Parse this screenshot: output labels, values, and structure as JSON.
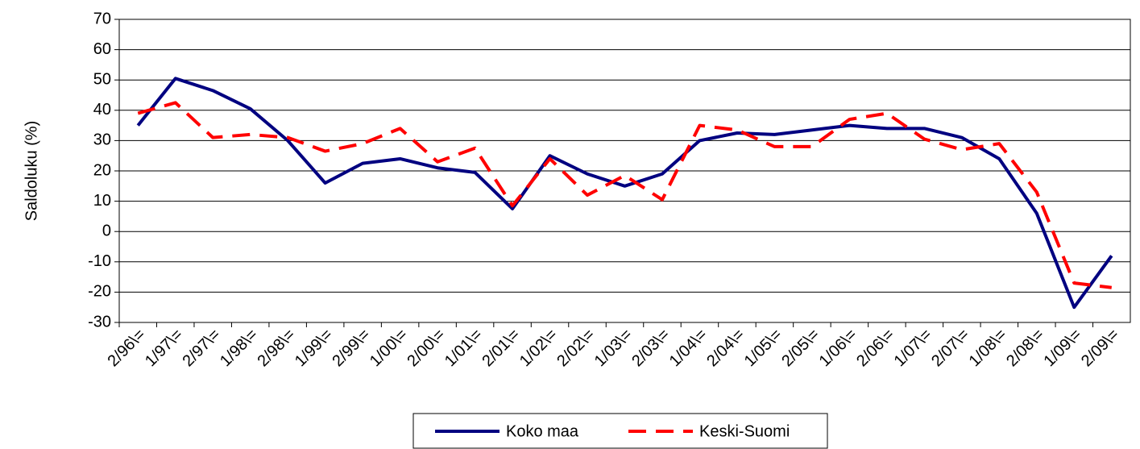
{
  "chart_data": {
    "type": "line",
    "y_label": "Saldoluku (%)",
    "categories": [
      "2/96\\=",
      "1/97\\=",
      "2/97\\=",
      "1/98\\=",
      "2/98\\=",
      "1/99\\=",
      "2/99\\=",
      "1/00\\=",
      "2/00\\=",
      "1/01\\=",
      "2/01\\=",
      "1/02\\=",
      "2/02\\=",
      "1/03\\=",
      "2/03\\=",
      "1/04\\=",
      "2/04\\=",
      "1/05\\=",
      "2/05\\=",
      "1/06\\=",
      "2/06\\=",
      "1/07\\=",
      "2/07\\=",
      "1/08\\=",
      "2/08\\=",
      "1/09\\=",
      "2/09\\="
    ],
    "series": [
      {
        "name": "Koko maa",
        "color": "#000080",
        "dash": false,
        "values": [
          35,
          50.5,
          46.5,
          40.5,
          30,
          16,
          22.5,
          24,
          21,
          19.5,
          7.5,
          25,
          19,
          15,
          19,
          30,
          32.5,
          32,
          33.5,
          35,
          34,
          34,
          31,
          24,
          6,
          -25,
          -8
        ]
      },
      {
        "name": "Keski-Suomi",
        "color": "#ff0000",
        "dash": true,
        "values": [
          39,
          42.5,
          31,
          32,
          31,
          26.5,
          29,
          34,
          23,
          27.5,
          8.5,
          24,
          12,
          18.5,
          10.5,
          35,
          33.5,
          28,
          28,
          37,
          39,
          30.5,
          27,
          29,
          13,
          -17,
          -18.5
        ]
      }
    ],
    "ylim": [
      -30,
      70
    ],
    "yticks": [
      -30,
      -20,
      -10,
      0,
      10,
      20,
      30,
      40,
      50,
      60,
      70
    ],
    "grid": true,
    "legend": "bottom"
  }
}
